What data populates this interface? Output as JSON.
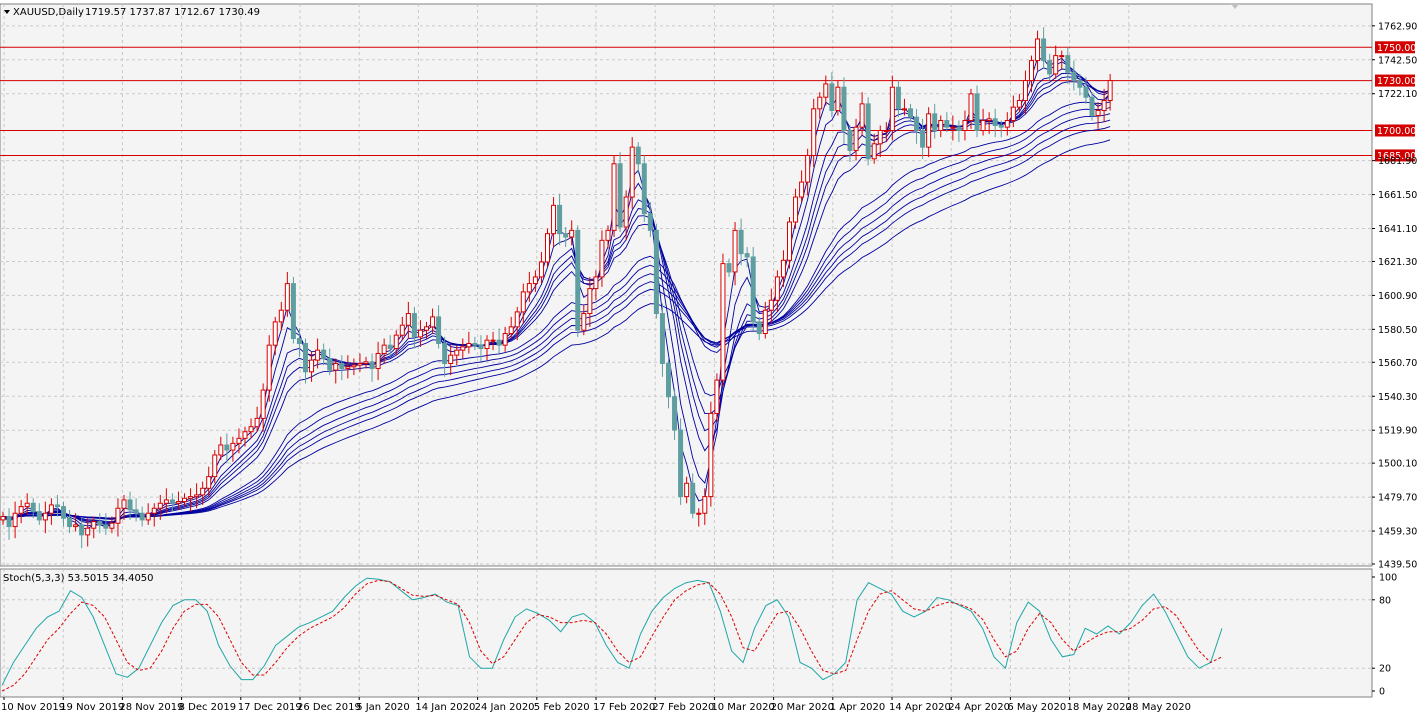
{
  "window": {
    "symbol_header": "XAUUSD,Daily",
    "ohlc_header": "1719.57 1737.87 1712.67 1730.49"
  },
  "indicator": {
    "label": "Stoch(5,3,3) 53.5015 34.4050",
    "scale_labels": [
      "100",
      "80",
      "20",
      "0"
    ]
  },
  "colors": {
    "bull": "#d90000",
    "bear": "#5f9ea0",
    "ma": "#0000a0",
    "level": "#d40000",
    "stoch_main": "#20a6a6",
    "stoch_signal": "#e00000",
    "grid": "#c8c8c8"
  },
  "chart_data": {
    "type": "candlestick",
    "y_ticks": [
      "1762.90",
      "1742.50",
      "1722.10",
      "1681.90",
      "1661.50",
      "1641.10",
      "1621.30",
      "1600.90",
      "1580.50",
      "1560.70",
      "1540.30",
      "1519.90",
      "1500.10",
      "1479.70",
      "1459.30",
      "1439.50"
    ],
    "ylim": [
      1439.5,
      1770
    ],
    "x_ticks": [
      "10 Nov 2019",
      "19 Nov 2019",
      "28 Nov 2019",
      "8 Dec 2019",
      "17 Dec 2019",
      "26 Dec 2019",
      "5 Jan 2020",
      "14 Jan 2020",
      "24 Jan 2020",
      "5 Feb 2020",
      "17 Feb 2020",
      "27 Feb 2020",
      "10 Mar 2020",
      "20 Mar 2020",
      "1 Apr 2020",
      "14 Apr 2020",
      "24 Apr 2020",
      "6 May 2020",
      "18 May 2020",
      "28 May 2020"
    ],
    "level_lines": [
      {
        "label": "1750.00",
        "value": 1750.0
      },
      {
        "label": "1730.00",
        "value": 1730.0
      },
      {
        "label": "1700.00",
        "value": 1700.0
      },
      {
        "label": "1685.00",
        "value": 1685.0
      }
    ],
    "closes": [
      1468,
      1462,
      1470,
      1474,
      1476,
      1471,
      1466,
      1470,
      1475,
      1474,
      1467,
      1462,
      1463,
      1457,
      1461,
      1465,
      1463,
      1461,
      1464,
      1473,
      1478,
      1472,
      1470,
      1466,
      1470,
      1473,
      1476,
      1478,
      1476,
      1477,
      1479,
      1480,
      1481,
      1485,
      1492,
      1505,
      1511,
      1508,
      1512,
      1515,
      1519,
      1522,
      1527,
      1544,
      1571,
      1585,
      1592,
      1608,
      1575,
      1572,
      1555,
      1562,
      1568,
      1563,
      1556,
      1560,
      1557,
      1558,
      1559,
      1560,
      1561,
      1557,
      1566,
      1571,
      1569,
      1577,
      1583,
      1590,
      1576,
      1580,
      1582,
      1588,
      1572,
      1560,
      1565,
      1568,
      1570,
      1572,
      1571,
      1569,
      1574,
      1574,
      1571,
      1578,
      1582,
      1591,
      1603,
      1608,
      1612,
      1621,
      1638,
      1655,
      1638,
      1636,
      1640,
      1580,
      1590,
      1605,
      1612,
      1634,
      1640,
      1680,
      1642,
      1660,
      1690,
      1680,
      1650,
      1640,
      1590,
      1560,
      1540,
      1520,
      1480,
      1488,
      1470,
      1470,
      1480,
      1530,
      1550,
      1620,
      1615,
      1640,
      1626,
      1624,
      1585,
      1578,
      1592,
      1598,
      1612,
      1622,
      1645,
      1660,
      1669,
      1685,
      1713,
      1720,
      1728,
      1712,
      1726,
      1700,
      1688,
      1702,
      1716,
      1683,
      1692,
      1700,
      1700,
      1726,
      1713,
      1713,
      1708,
      1700,
      1690,
      1710,
      1700,
      1706,
      1702,
      1702,
      1700,
      1706,
      1722,
      1700,
      1706,
      1707,
      1703,
      1702,
      1706,
      1714,
      1718,
      1730,
      1742,
      1755,
      1742,
      1734,
      1745,
      1745,
      1735,
      1730,
      1726,
      1720,
      1709,
      1712,
      1718,
      1730
    ],
    "ma_periods": [
      3,
      5,
      8,
      10,
      12,
      15,
      30,
      35,
      40,
      45,
      50,
      60
    ],
    "stochastic": {
      "k": [
        5,
        25,
        40,
        55,
        65,
        70,
        88,
        82,
        65,
        40,
        15,
        12,
        20,
        40,
        60,
        75,
        80,
        80,
        70,
        40,
        22,
        10,
        10,
        22,
        40,
        48,
        56,
        60,
        65,
        70,
        82,
        92,
        99,
        98,
        96,
        88,
        80,
        82,
        85,
        78,
        75,
        30,
        20,
        20,
        45,
        65,
        72,
        68,
        62,
        52,
        65,
        68,
        60,
        40,
        25,
        20,
        50,
        70,
        82,
        90,
        95,
        97,
        95,
        70,
        35,
        25,
        55,
        75,
        80,
        65,
        25,
        20,
        10,
        15,
        25,
        80,
        95,
        90,
        85,
        70,
        65,
        70,
        82,
        80,
        75,
        70,
        55,
        30,
        20,
        60,
        78,
        70,
        45,
        30,
        32,
        55,
        50,
        57,
        50,
        60,
        75,
        85,
        70,
        50,
        30,
        20,
        25,
        55
      ],
      "d": [
        0,
        5,
        15,
        30,
        45,
        55,
        68,
        78,
        75,
        65,
        45,
        25,
        18,
        20,
        35,
        55,
        70,
        76,
        76,
        65,
        45,
        25,
        14,
        14,
        25,
        38,
        48,
        55,
        60,
        65,
        73,
        85,
        94,
        97,
        96,
        90,
        84,
        83,
        84,
        80,
        76,
        60,
        35,
        24,
        30,
        45,
        60,
        67,
        65,
        60,
        60,
        62,
        60,
        50,
        35,
        25,
        30,
        48,
        65,
        80,
        88,
        93,
        95,
        85,
        65,
        38,
        35,
        52,
        68,
        70,
        55,
        35,
        18,
        15,
        18,
        45,
        70,
        85,
        88,
        80,
        72,
        70,
        75,
        78,
        76,
        72,
        63,
        45,
        30,
        35,
        55,
        68,
        60,
        45,
        35,
        42,
        48,
        52,
        52,
        55,
        62,
        72,
        74,
        66,
        50,
        35,
        25,
        30
      ]
    }
  }
}
